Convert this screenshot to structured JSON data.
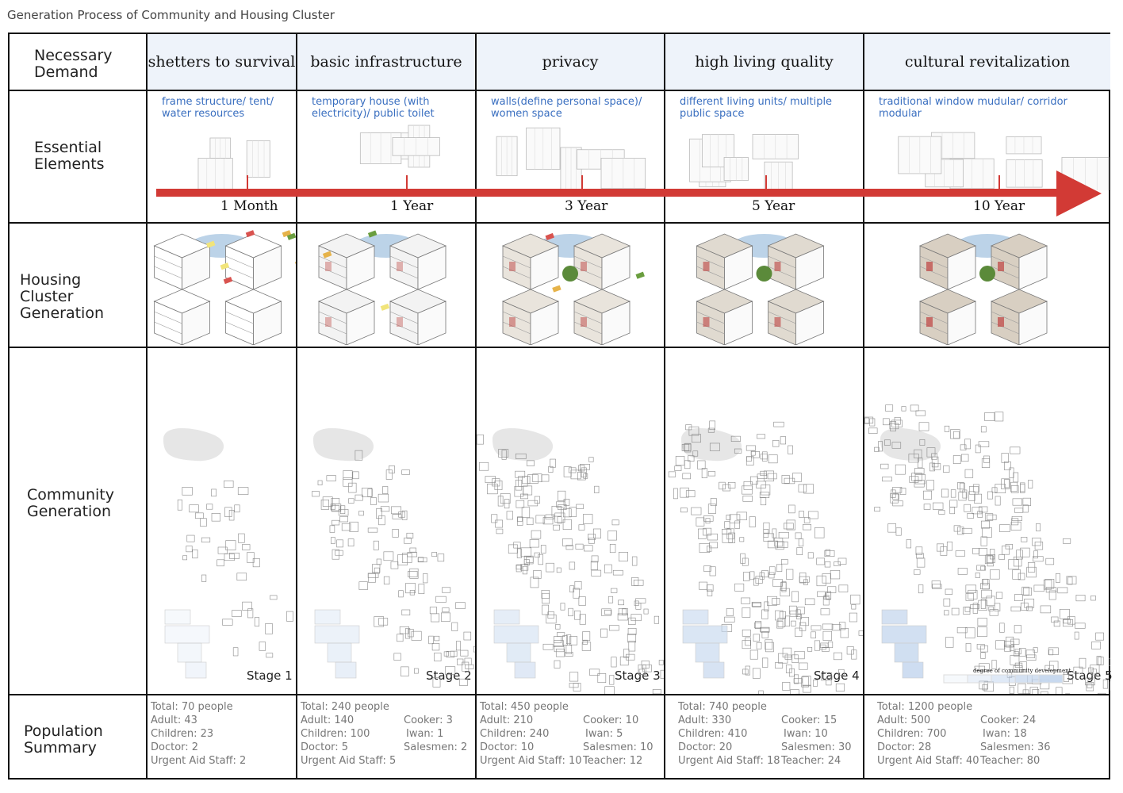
{
  "title": "Generation Process of Community and Housing Cluster",
  "row_labels": {
    "demand": "Necessary Demand",
    "elements": "Essential Elements",
    "housing": "Housing Cluster Generation",
    "community": "Community Generation",
    "population": "Population Summary"
  },
  "colors": {
    "arrow": "#d23a35",
    "element_text": "#3a6fc0",
    "header_bg": "#eef3fa",
    "stage_blue": "#c5d7ee"
  },
  "stages": [
    {
      "demand": "shetters to survival",
      "elements": "frame structure/ tent/ water resources",
      "time": "1 Month",
      "stage": "Stage 1",
      "pop": {
        "total": "Total: 70 people",
        "adult": "Adult: 43",
        "children": "Children: 23",
        "doctor": "Doctor: 2",
        "aid": "Urgent Aid Staff: 2"
      }
    },
    {
      "demand": "basic infrastructure",
      "elements": "temporary house (with electricity)/ public toilet",
      "time": "1 Year",
      "stage": "Stage 2",
      "pop": {
        "total": "Total: 240 people",
        "adult": "Adult: 140",
        "children": "Children: 100",
        "doctor": "Doctor: 5",
        "aid": "Urgent Aid Staff: 5",
        "cooker": "Cooker: 3",
        "iwan": "Iwan: 1",
        "salesmen": "Salesmen: 2"
      }
    },
    {
      "demand": "privacy",
      "elements": "walls(define personal space)/ women space",
      "time": "3 Year",
      "stage": "Stage 3",
      "pop": {
        "total": "Total: 450 people",
        "adult": "Adult: 210",
        "children": "Children: 240",
        "doctor": "Doctor: 10",
        "aid": "Urgent Aid Staff: 10",
        "cooker": "Cooker: 10",
        "iwan": "Iwan: 5",
        "salesmen": "Salesmen: 10",
        "teacher": "Teacher: 12"
      }
    },
    {
      "demand": "high living quality",
      "elements": "different living units/ multiple public space",
      "time": "5 Year",
      "stage": "Stage 4",
      "pop": {
        "total": "Total: 740 people",
        "adult": "Adult: 330",
        "children": "Children: 410",
        "doctor": "Doctor: 20",
        "aid": "Urgent Aid Staff: 18",
        "cooker": "Cooker: 15",
        "iwan": "Iwan: 10",
        "salesmen": "Salesmen: 30",
        "teacher": "Teacher: 24"
      }
    },
    {
      "demand": "cultural revitalization",
      "elements": "traditional window mudular/ corridor modular",
      "time": "10 Year",
      "stage": "Stage 5",
      "pop": {
        "total": "Total: 1200 people",
        "adult": "Adult: 500",
        "children": "Children: 700",
        "doctor": "Doctor: 28",
        "aid": "Urgent Aid Staff: 40",
        "cooker": "Cooker: 24",
        "iwan": "Iwan: 18",
        "salesmen": "Salesmen: 36",
        "teacher": "Teacher: 80"
      }
    }
  ],
  "legend_label": "degree of community development"
}
